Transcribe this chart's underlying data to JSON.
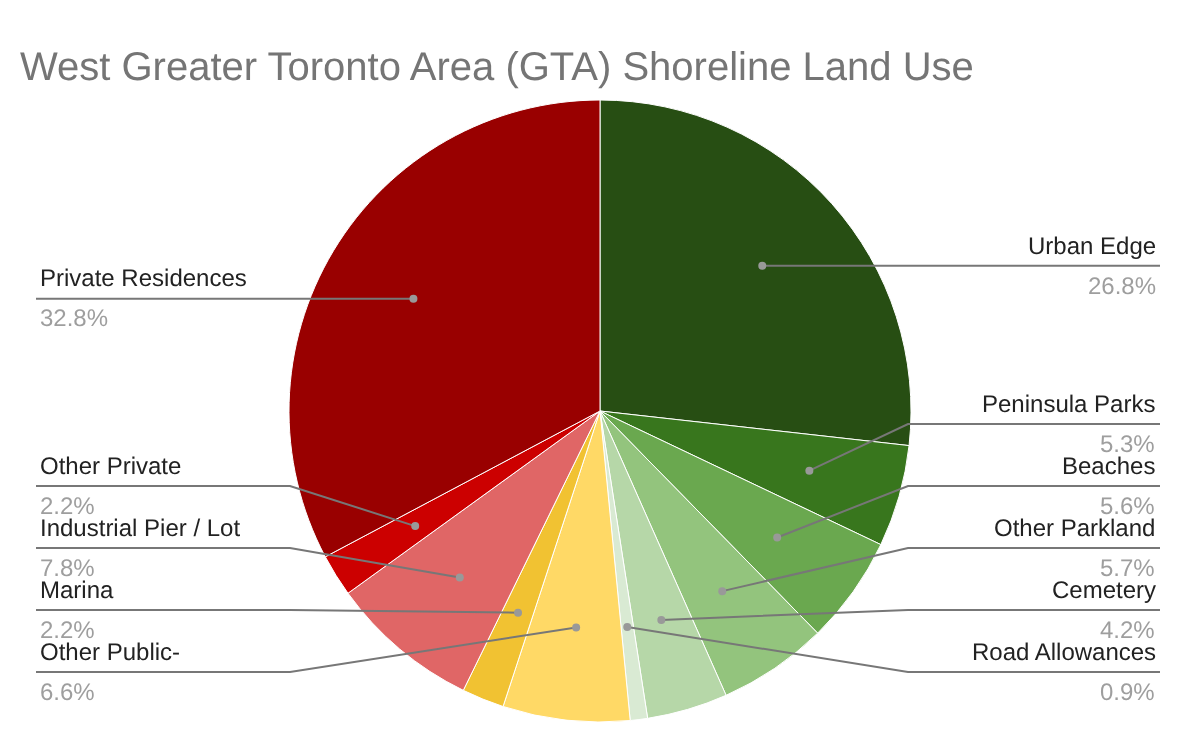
{
  "chart_data": {
    "type": "pie",
    "title": "West Greater Toronto Area (GTA) Shoreline Land Use",
    "categories": [
      "Urban Edge",
      "Peninsula Parks",
      "Beaches",
      "Other Parkland",
      "Cemetery",
      "Road Allowances",
      "Other Public-",
      "Marina",
      "Industrial Pier / Lot",
      "Other Private",
      "Private Residences"
    ],
    "values": [
      26.8,
      5.3,
      5.6,
      5.7,
      4.2,
      0.9,
      6.6,
      2.2,
      7.8,
      2.2,
      32.8
    ],
    "value_labels": [
      "26.8%",
      "5.3%",
      "5.6%",
      "5.7%",
      "4.2%",
      "0.9%",
      "6.6%",
      "2.2%",
      "7.8%",
      "2.2%",
      "32.8%"
    ],
    "colors": [
      "#274e13",
      "#38761d",
      "#6aa84f",
      "#93c47d",
      "#b6d7a8",
      "#d9ead3",
      "#ffd966",
      "#f1c232",
      "#e06666",
      "#cc0000",
      "#990000"
    ],
    "legend": false
  }
}
